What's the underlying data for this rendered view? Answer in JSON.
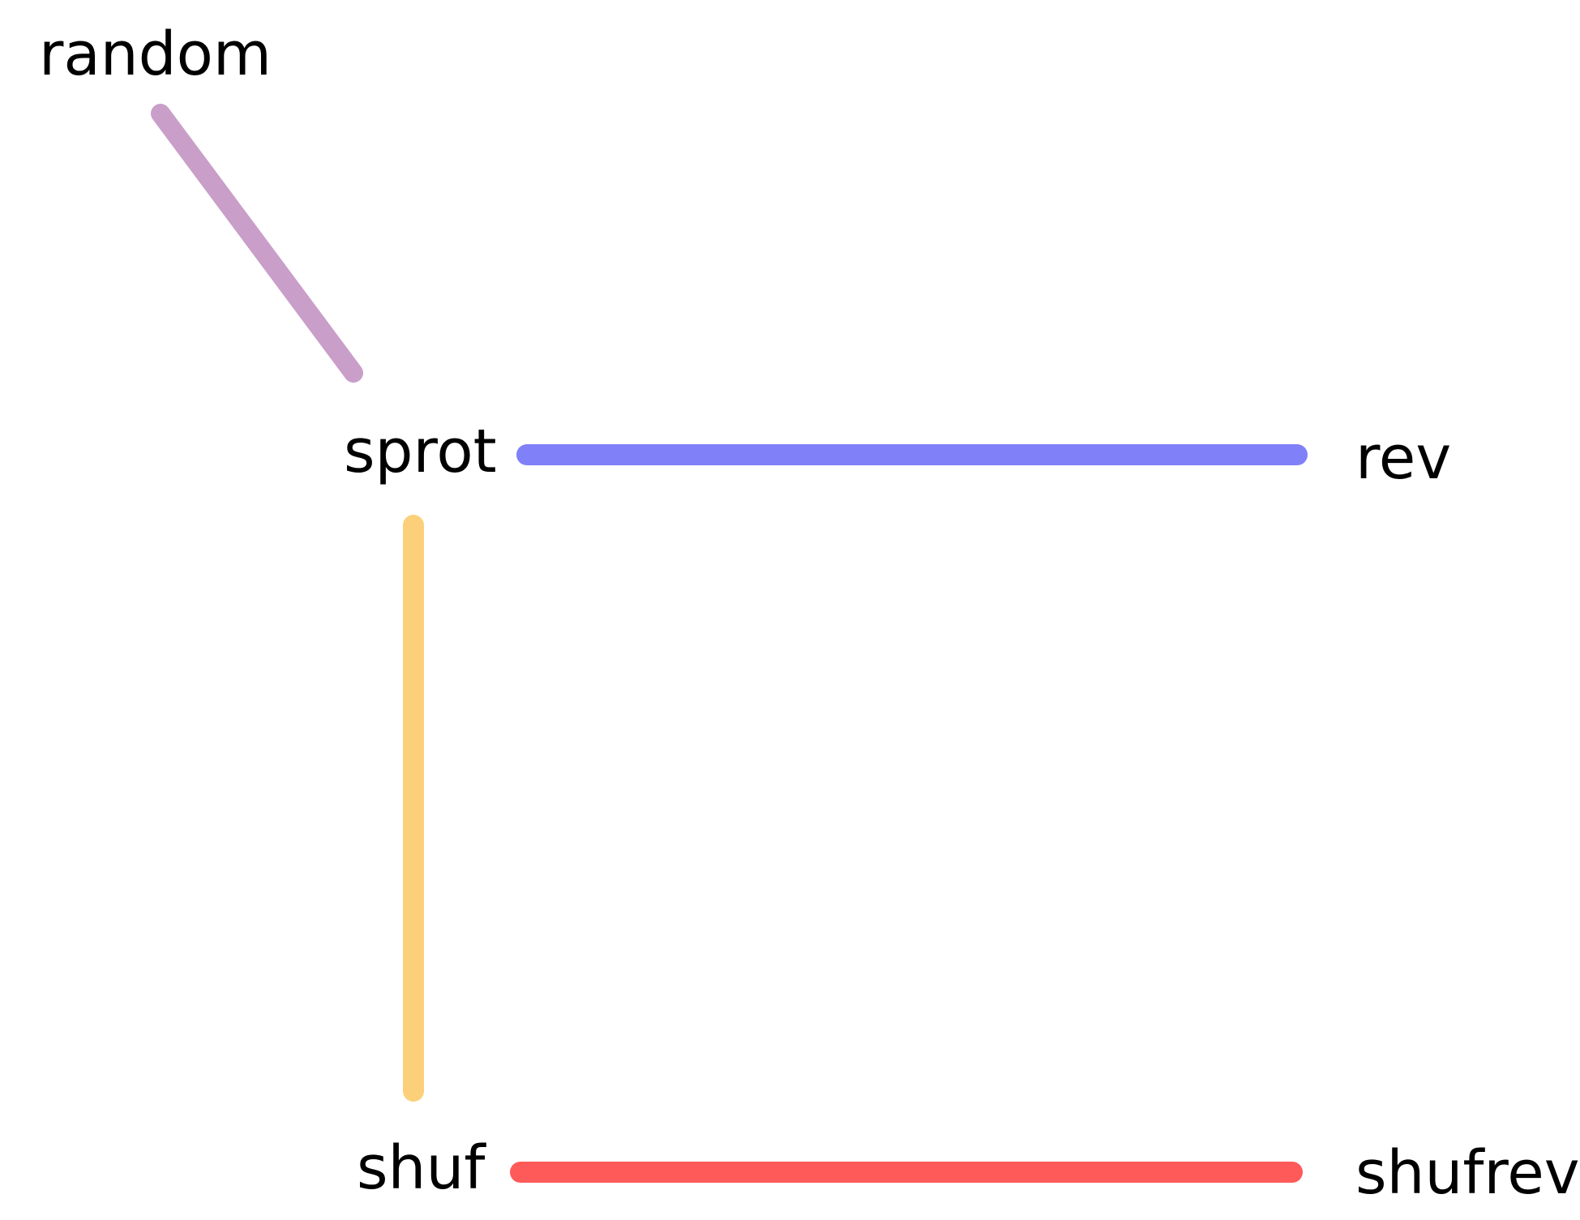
{
  "nodes": {
    "random": "random",
    "sprot": "sprot",
    "rev": "rev",
    "shuf": "shuf",
    "shufrev": "shufrev"
  },
  "edges": [
    {
      "from": "random",
      "to": "sprot",
      "color": "#c99ec9"
    },
    {
      "from": "sprot",
      "to": "rev",
      "color": "#8080f8"
    },
    {
      "from": "sprot",
      "to": "shuf",
      "color": "#fcd07a"
    },
    {
      "from": "shuf",
      "to": "shufrev",
      "color": "#ff5a5a"
    }
  ]
}
